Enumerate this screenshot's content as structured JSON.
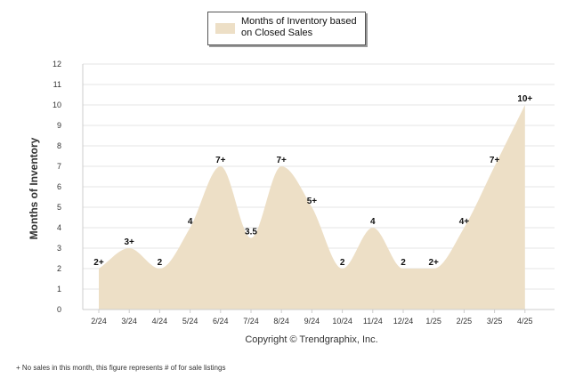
{
  "chart_data": {
    "type": "area",
    "categories": [
      "2/24",
      "3/24",
      "4/24",
      "5/24",
      "6/24",
      "7/24",
      "8/24",
      "9/24",
      "10/24",
      "11/24",
      "12/24",
      "1/25",
      "2/25",
      "3/25",
      "4/25"
    ],
    "series": [
      {
        "name": "Months of Inventory based on Closed Sales",
        "values": [
          2,
          3,
          2,
          4,
          7,
          3.5,
          7,
          5,
          2,
          4,
          2,
          2,
          4,
          7,
          10
        ],
        "data_labels": [
          "2+",
          "3+",
          "2",
          "4",
          "7+",
          "3.5",
          "7+",
          "5+",
          "2",
          "4",
          "2",
          "2+",
          "4+",
          "7+",
          "10+"
        ]
      }
    ],
    "ylabel": "Months of Inventory",
    "xlabel": "",
    "ylim": [
      0,
      12
    ],
    "yticks": [
      "0",
      "1",
      "2",
      "3",
      "4",
      "5",
      "6",
      "7",
      "8",
      "9",
      "10",
      "11",
      "12"
    ],
    "grid": true,
    "legend_position": "top-center",
    "fill_color": "#eddfc6",
    "grid_color": "#e6e6e6"
  },
  "copyright": "Copyright © Trendgraphix, Inc.",
  "footnote": "+ No sales in this month, this figure represents # of for sale listings"
}
